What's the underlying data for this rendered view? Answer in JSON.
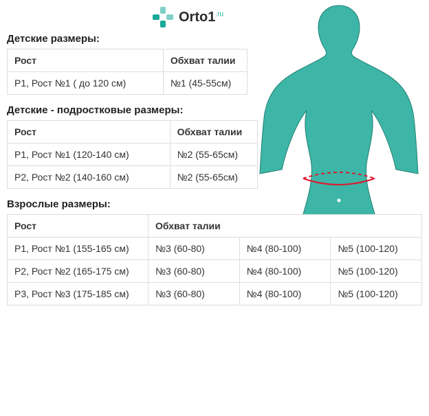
{
  "logo": {
    "name1": "Orto1",
    "sup": ".ru",
    "brand_color": "#18a999",
    "text_color": "#2a2a2a"
  },
  "colors": {
    "body_fill": "#3db6a7",
    "body_stroke": "#1f7f72",
    "waist_line": "#e0162b",
    "table_border": "#dddddd",
    "text": "#333333",
    "bg": "#ffffff"
  },
  "typography": {
    "base_fontsize": 14,
    "title_fontsize": 15,
    "title_weight": "bold"
  },
  "sections": [
    {
      "title": "Детские размеры:",
      "table_class": "t1",
      "colgroup": [
        "c1",
        "c2"
      ],
      "header": [
        "Рост",
        "Обхват талии"
      ],
      "header_span": [
        1,
        1
      ],
      "rows": [
        [
          "Р1, Рост №1 ( до 120 см)",
          "№1 (45-55см)"
        ]
      ]
    },
    {
      "title": "Детские - подростковые размеры:",
      "table_class": "t2",
      "colgroup": [
        "c1",
        "c2"
      ],
      "header": [
        "Рост",
        "Обхват талии"
      ],
      "header_span": [
        1,
        1
      ],
      "rows": [
        [
          "Р1, Рост №1 (120-140 см)",
          "№2 (55-65см)"
        ],
        [
          "Р2, Рост №2 (140-160 см)",
          "№2 (55-65см)"
        ]
      ]
    },
    {
      "title": "Взрослые размеры:",
      "table_class": "t3",
      "colgroup": [
        "c1",
        "c2",
        "c3",
        "c4"
      ],
      "header": [
        "Рост",
        "Обхват талии"
      ],
      "header_span": [
        1,
        3
      ],
      "rows": [
        [
          "Р1, Рост №1 (155-165 см)",
          "№3 (60-80)",
          "№4 (80-100)",
          "№5 (100-120)"
        ],
        [
          "Р2, Рост №2 (165-175 см)",
          "№3 (60-80)",
          "№4 (80-100)",
          "№5 (100-120)"
        ],
        [
          "Р3, Рост №3 (175-185 см)",
          "№3 (60-80)",
          "№4 (80-100)",
          "№5 (100-120)"
        ]
      ]
    }
  ]
}
